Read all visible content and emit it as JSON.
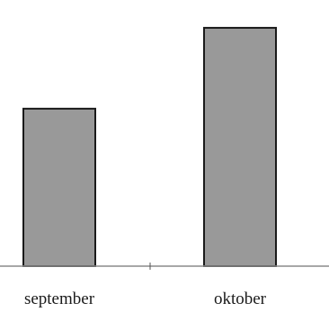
{
  "chart_data": {
    "type": "bar",
    "categories": [
      "september",
      "oktober"
    ],
    "values": [
      185,
      280
    ],
    "title": "",
    "xlabel": "",
    "ylabel": "",
    "ylim": [
      0,
      300
    ],
    "grid": false,
    "legend": "none",
    "bar_color": "#999999",
    "bar_stroke": "#1a1a1a",
    "axis_color": "#8c8c8c"
  }
}
